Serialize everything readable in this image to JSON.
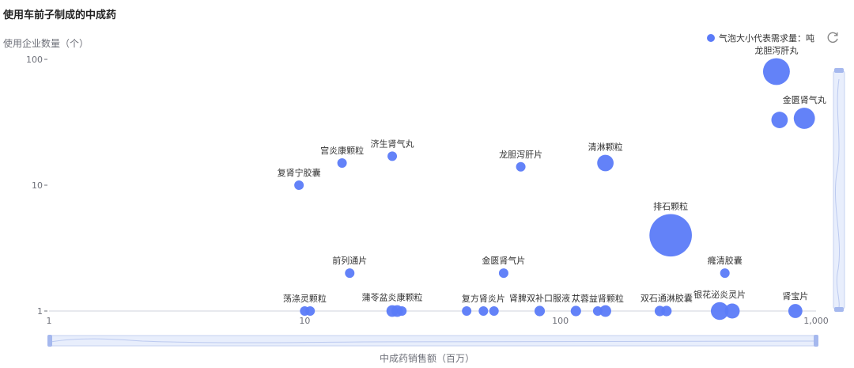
{
  "header": {
    "title": "使用车前子制成的中成药"
  },
  "legend": {
    "label": "气泡大小代表需求量：吨",
    "color": "#5b7bf8"
  },
  "chart_data": {
    "type": "scatter",
    "subtype": "bubble",
    "xlabel": "中成药销售额（百万）",
    "ylabel": "使用企业数量（个）",
    "x_scale": "log",
    "y_scale": "log",
    "xlim": [
      1,
      1000
    ],
    "ylim": [
      1,
      100
    ],
    "x_ticks": [
      "1",
      "10",
      "100",
      "1,000"
    ],
    "y_ticks": [
      "1",
      "10",
      "100"
    ],
    "points": [
      {
        "label": "复肾宁胶囊",
        "x": 9.5,
        "y": 10,
        "size": 1
      },
      {
        "label": "宫炎康颗粒",
        "x": 14,
        "y": 15,
        "size": 1
      },
      {
        "label": "济生肾气丸",
        "x": 22,
        "y": 17,
        "size": 1
      },
      {
        "label": "龙胆泻肝片",
        "x": 70,
        "y": 14,
        "size": 1
      },
      {
        "label": "清淋颗粒",
        "x": 150,
        "y": 15,
        "size": 3
      },
      {
        "label": "龙胆泻肝丸",
        "x": 700,
        "y": 80,
        "size": 8
      },
      {
        "label": "",
        "x": 720,
        "y": 33,
        "size": 3
      },
      {
        "label": "金匮肾气丸",
        "x": 900,
        "y": 34,
        "size": 5
      },
      {
        "label": "排石颗粒",
        "x": 270,
        "y": 4,
        "size": 20
      },
      {
        "label": "癃清胶囊",
        "x": 440,
        "y": 2,
        "size": 1
      },
      {
        "label": "前列通片",
        "x": 15,
        "y": 2,
        "size": 1
      },
      {
        "label": "金匮肾气片",
        "x": 60,
        "y": 2,
        "size": 1
      },
      {
        "label": "荡涤灵颗粒",
        "x": 10,
        "y": 1,
        "size": 1
      },
      {
        "label": "",
        "x": 10.5,
        "y": 1,
        "size": 1
      },
      {
        "label": "蒲苓盆炎康颗粒",
        "x": 22,
        "y": 1,
        "size": 1.5
      },
      {
        "label": "",
        "x": 23,
        "y": 1,
        "size": 1.5
      },
      {
        "label": "",
        "x": 24,
        "y": 1,
        "size": 1
      },
      {
        "label": "",
        "x": 43,
        "y": 1,
        "size": 1
      },
      {
        "label": "复方肾炎片",
        "x": 50,
        "y": 1,
        "size": 1
      },
      {
        "label": "",
        "x": 55,
        "y": 1,
        "size": 1
      },
      {
        "label": "肾脾双补口服液",
        "x": 83,
        "y": 1,
        "size": 1.2
      },
      {
        "label": "",
        "x": 115,
        "y": 1,
        "size": 1.2
      },
      {
        "label": "苁蓉益肾颗粒",
        "x": 140,
        "y": 1,
        "size": 1
      },
      {
        "label": "",
        "x": 150,
        "y": 1,
        "size": 1.5
      },
      {
        "label": "",
        "x": 245,
        "y": 1,
        "size": 1.2
      },
      {
        "label": "双石通淋胶囊",
        "x": 260,
        "y": 1,
        "size": 1.2
      },
      {
        "label": "银花泌炎灵片",
        "x": 420,
        "y": 1,
        "size": 3.5
      },
      {
        "label": "",
        "x": 470,
        "y": 1,
        "size": 2.5
      },
      {
        "label": "肾宝片",
        "x": 830,
        "y": 1,
        "size": 2.2
      }
    ]
  }
}
